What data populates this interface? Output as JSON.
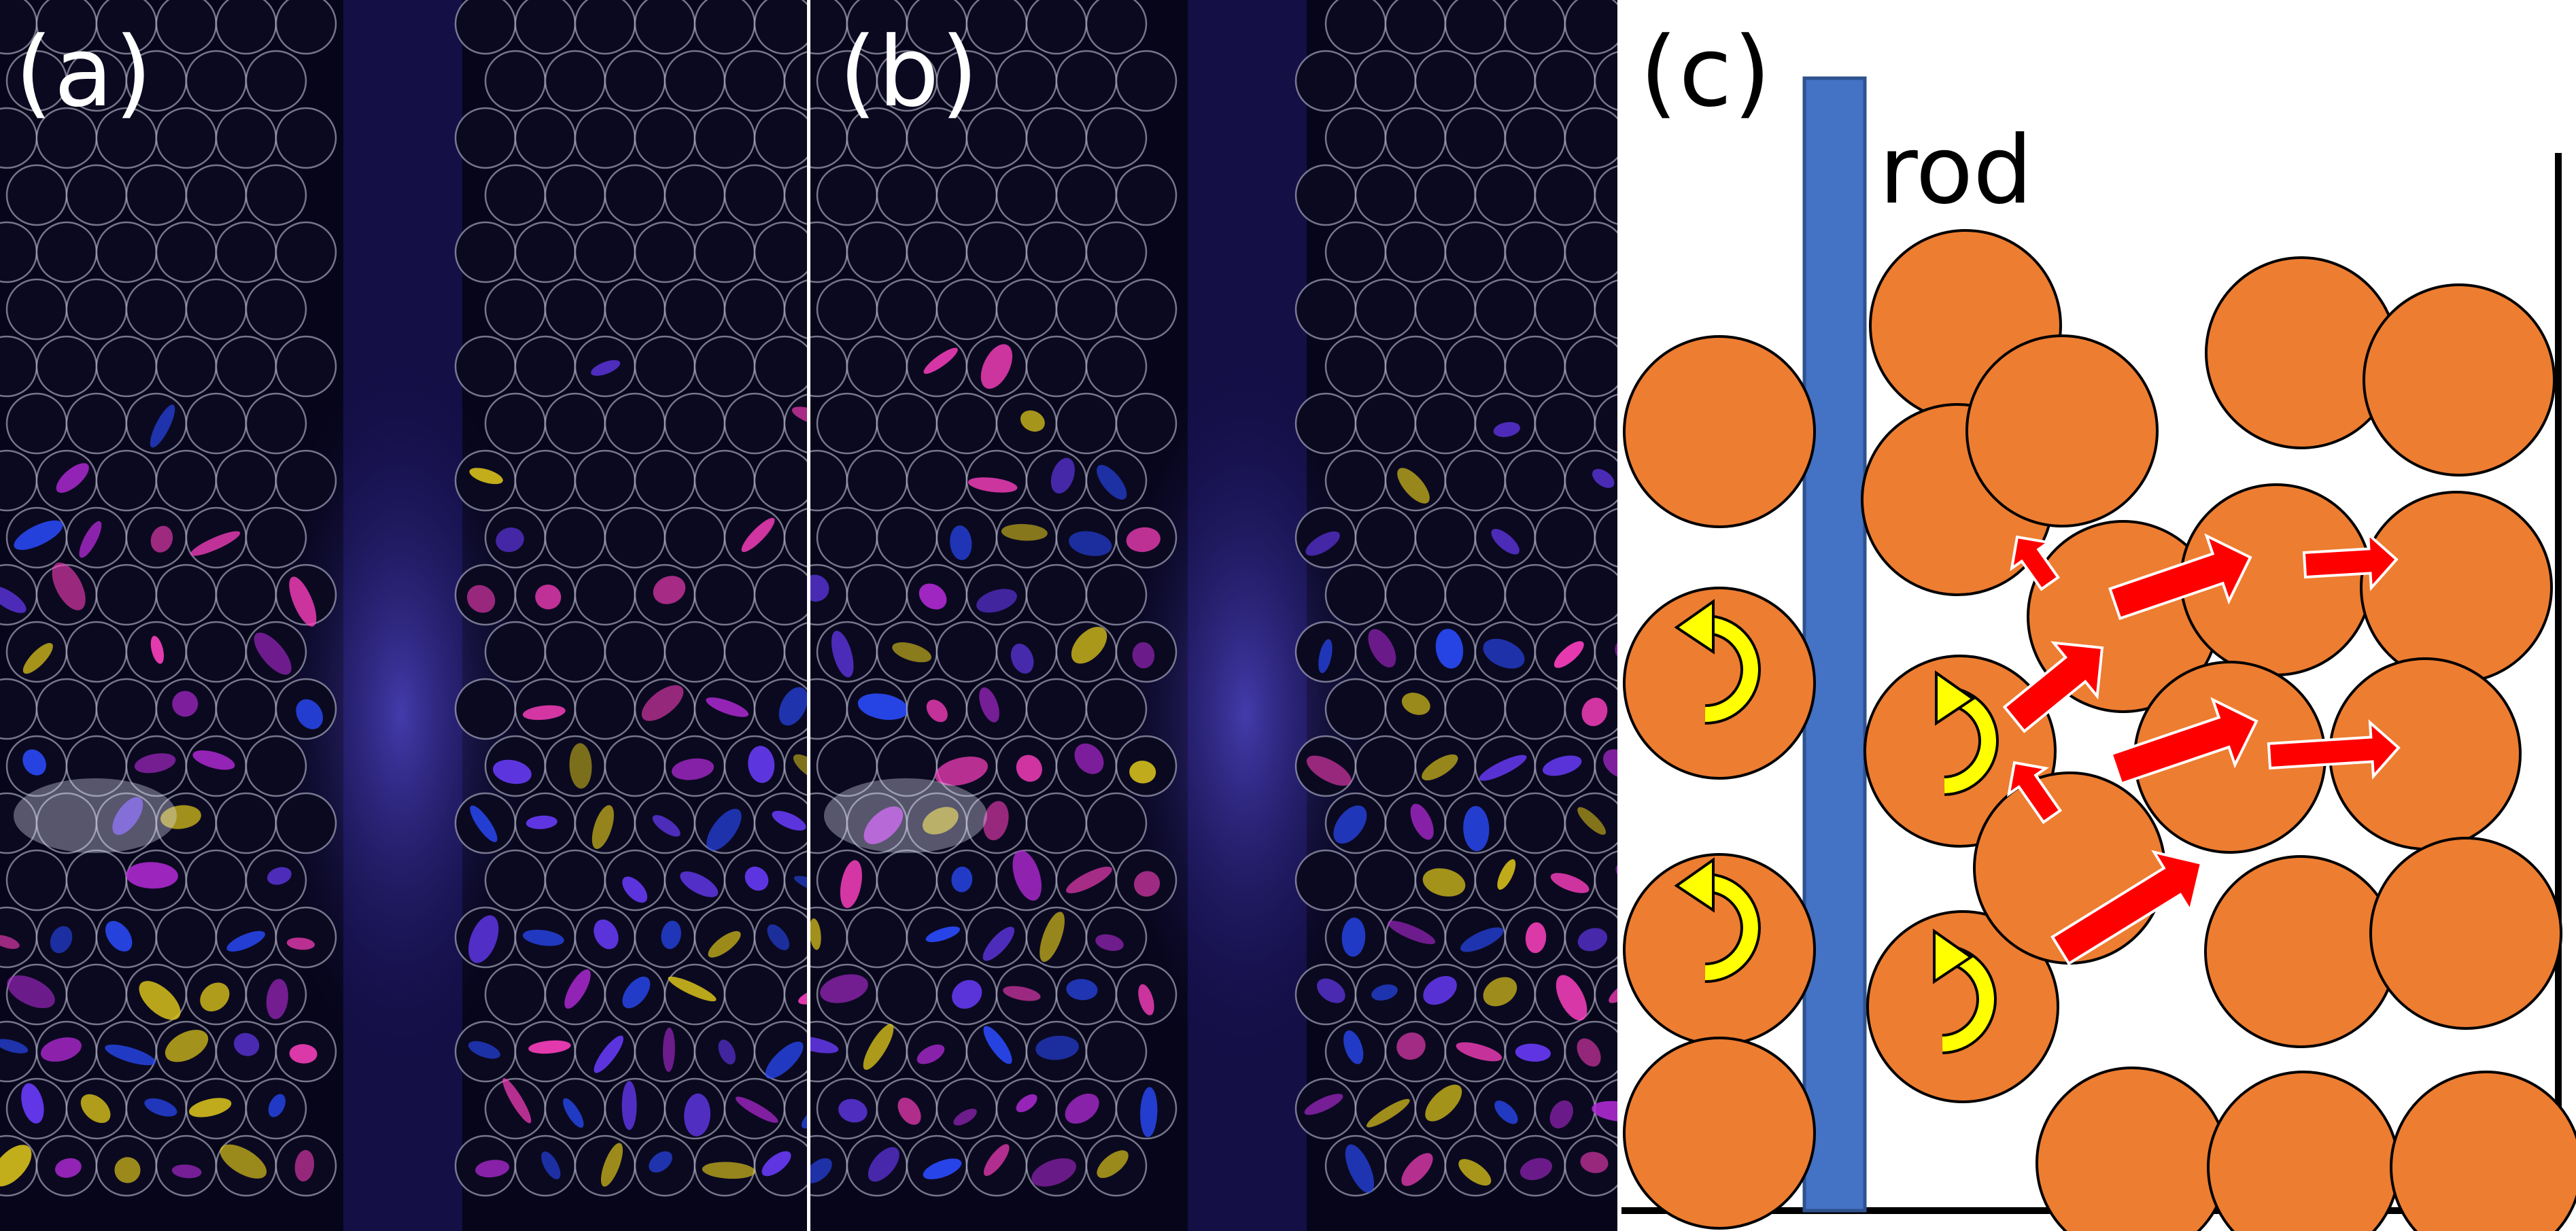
{
  "figure": {
    "panels": [
      {
        "id": "a",
        "label": "(a)",
        "kind": "photograph"
      },
      {
        "id": "b",
        "label": "(b)",
        "kind": "photograph"
      },
      {
        "id": "c",
        "label": "(c)",
        "kind": "schematic"
      }
    ],
    "schematic": {
      "rod_label": "rod"
    }
  },
  "colors": {
    "photo_background": "#07051a",
    "rod": "#4472c4",
    "particle_fill": "#ed7d31",
    "force_arrow": "#ff0000",
    "rotation_arrow": "#ffff00",
    "outline": "#000000"
  },
  "icons": {
    "force": "red-arrow-icon",
    "rotation": "curved-yellow-arrow-icon"
  }
}
